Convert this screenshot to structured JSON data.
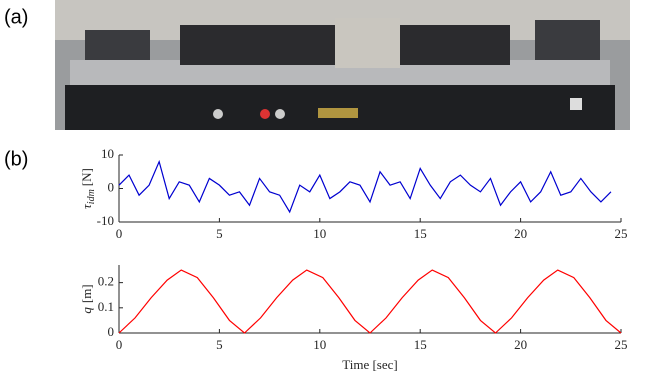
{
  "panel_labels": [
    "(a)",
    "(b)"
  ],
  "chart_data": [
    {
      "type": "line",
      "ylabel": [
        "τ",
        "idm",
        "[N]"
      ],
      "color": "#0000d0",
      "x": [
        0,
        0.5,
        1,
        1.5,
        2,
        2.5,
        3,
        3.5,
        4,
        4.5,
        5,
        5.5,
        6,
        6.5,
        7,
        7.5,
        8,
        8.5,
        9,
        9.5,
        10,
        10.5,
        11,
        11.5,
        12,
        12.5,
        13,
        13.5,
        14,
        14.5,
        15,
        15.5,
        16,
        16.5,
        17,
        17.5,
        18,
        18.5,
        19,
        19.5,
        20,
        20.5,
        21,
        21.5,
        22,
        22.5,
        23,
        23.5,
        24,
        24.5
      ],
      "values": [
        1,
        4,
        -2,
        1,
        8,
        -3,
        2,
        1,
        -4,
        3,
        1,
        -2,
        -1,
        -5,
        3,
        -1,
        -2,
        -7,
        1,
        -1,
        4,
        -3,
        -1,
        2,
        1,
        -4,
        5,
        1,
        2,
        -3,
        6,
        1,
        -3,
        2,
        4,
        1,
        -1,
        3,
        -5,
        -1,
        2,
        -4,
        -1,
        5,
        -2,
        -1,
        3,
        -1,
        -4,
        -1
      ],
      "xlim": [
        0,
        25
      ],
      "xticks": [
        0,
        5,
        10,
        15,
        20,
        25
      ],
      "ylim": [
        -10,
        10
      ],
      "yticks": [
        -10,
        0,
        10
      ]
    },
    {
      "type": "line",
      "ylabel": [
        "q",
        "[m]"
      ],
      "xlabel": "Time [sec]",
      "color": "#ff0000",
      "x": [
        0,
        0.8,
        1.6,
        2.4,
        3.1,
        3.9,
        4.7,
        5.5,
        6.25,
        7.05,
        7.85,
        8.65,
        9.35,
        10.15,
        10.95,
        11.75,
        12.5,
        13.3,
        14.1,
        14.9,
        15.6,
        16.4,
        17.2,
        18,
        18.75,
        19.55,
        20.35,
        21.15,
        21.85,
        22.65,
        23.45,
        24.25,
        25
      ],
      "values": [
        0,
        0.06,
        0.14,
        0.21,
        0.25,
        0.22,
        0.14,
        0.05,
        0,
        0.06,
        0.14,
        0.21,
        0.25,
        0.22,
        0.14,
        0.05,
        0,
        0.06,
        0.14,
        0.21,
        0.25,
        0.22,
        0.14,
        0.05,
        0,
        0.06,
        0.14,
        0.21,
        0.25,
        0.22,
        0.14,
        0.05,
        0
      ],
      "xlim": [
        0,
        25
      ],
      "xticks": [
        0,
        5,
        10,
        15,
        20,
        25
      ],
      "ylim": [
        0,
        0.27
      ],
      "yticks": [
        0,
        0.1,
        0.2
      ]
    }
  ]
}
